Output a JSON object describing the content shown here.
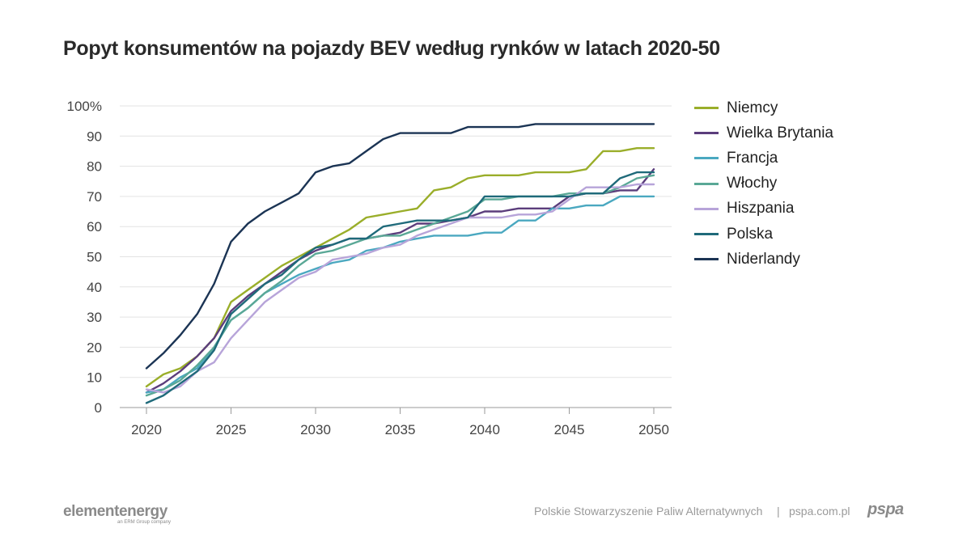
{
  "chart_data": {
    "type": "line",
    "title": "Popyt konsumentów na pojazdy BEV według rynków w latach 2020-50",
    "xlabel": "",
    "ylabel": "",
    "xlim": [
      2020,
      2050
    ],
    "ylim": [
      0,
      100
    ],
    "x_ticks": [
      "2020",
      "2025",
      "2030",
      "2035",
      "2040",
      "2045",
      "2050"
    ],
    "y_ticks": [
      "0",
      "10",
      "20",
      "30",
      "40",
      "50",
      "60",
      "70",
      "80",
      "90",
      "100%"
    ],
    "grid": "horizontal",
    "legend_position": "right",
    "x": [
      2020,
      2021,
      2022,
      2023,
      2024,
      2025,
      2026,
      2027,
      2028,
      2029,
      2030,
      2031,
      2032,
      2033,
      2034,
      2035,
      2036,
      2037,
      2038,
      2039,
      2040,
      2041,
      2042,
      2043,
      2044,
      2045,
      2046,
      2047,
      2048,
      2049,
      2050
    ],
    "series": [
      {
        "name": "Niemcy",
        "color": "#9aae2a",
        "values": [
          7,
          11,
          13,
          17,
          23,
          35,
          39,
          43,
          47,
          50,
          53,
          56,
          59,
          63,
          64,
          65,
          66,
          72,
          73,
          76,
          77,
          77,
          77,
          78,
          78,
          78,
          79,
          85,
          85,
          86,
          86
        ]
      },
      {
        "name": "Wielka Brytania",
        "color": "#5b3d7c",
        "values": [
          5,
          8,
          12,
          17,
          23,
          32,
          37,
          41,
          45,
          49,
          52,
          54,
          56,
          56,
          57,
          58,
          61,
          61,
          62,
          63,
          65,
          65,
          66,
          66,
          66,
          70,
          71,
          71,
          72,
          72,
          79
        ]
      },
      {
        "name": "Francja",
        "color": "#4aa8c0",
        "values": [
          5,
          6,
          10,
          13,
          20,
          29,
          33,
          38,
          41,
          44,
          46,
          48,
          49,
          52,
          53,
          55,
          56,
          57,
          57,
          57,
          58,
          58,
          62,
          62,
          66,
          66,
          67,
          67,
          70,
          70,
          70
        ]
      },
      {
        "name": "Włochy",
        "color": "#5aa896",
        "values": [
          4,
          6,
          9,
          14,
          20,
          29,
          33,
          38,
          42,
          47,
          51,
          52,
          54,
          56,
          57,
          57,
          59,
          61,
          63,
          65,
          69,
          69,
          70,
          70,
          70,
          71,
          71,
          71,
          73,
          76,
          77
        ]
      },
      {
        "name": "Hiszpania",
        "color": "#b7a4d9",
        "values": [
          6,
          5,
          7,
          12,
          15,
          23,
          29,
          35,
          39,
          43,
          45,
          49,
          50,
          51,
          53,
          54,
          57,
          59,
          61,
          63,
          63,
          63,
          64,
          64,
          65,
          69,
          73,
          73,
          73,
          74,
          74
        ]
      },
      {
        "name": "Polska",
        "color": "#1f6a7a",
        "values": [
          1.5,
          4,
          8,
          12,
          19,
          31,
          36,
          41,
          44,
          49,
          53,
          54,
          56,
          56,
          60,
          61,
          62,
          62,
          62,
          63,
          70,
          70,
          70,
          70,
          70,
          70,
          71,
          71,
          76,
          78,
          78
        ]
      },
      {
        "name": "Niderlandy",
        "color": "#1b3454",
        "values": [
          13,
          18,
          24,
          31,
          41,
          55,
          61,
          65,
          68,
          71,
          78,
          80,
          81,
          85,
          89,
          91,
          91,
          91,
          91,
          93,
          93,
          93,
          93,
          94,
          94,
          94,
          94,
          94,
          94,
          94,
          94
        ]
      }
    ]
  },
  "footer": {
    "logo_left": "elementenergy",
    "logo_left_sub": "an ERM Group company",
    "org_name": "Polskie Stowarzyszenie Paliw Alternatywnych",
    "separator": "|",
    "url": "pspa.com.pl",
    "logo_right": "pspa"
  }
}
